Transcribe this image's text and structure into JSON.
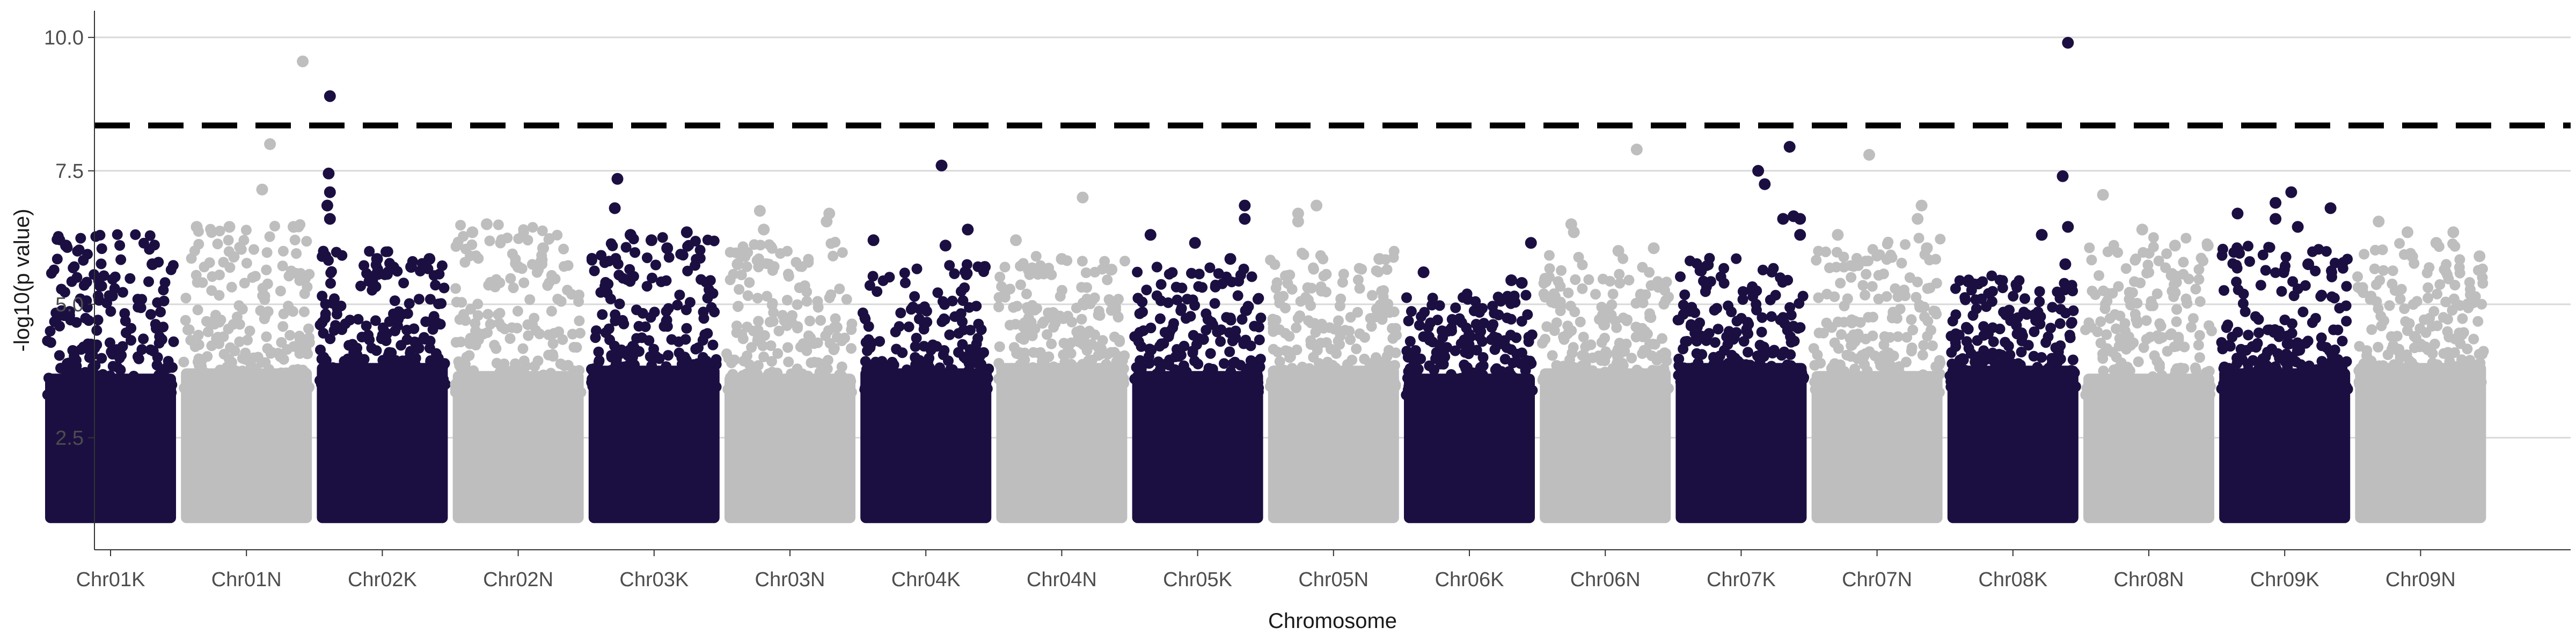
{
  "chart_data": {
    "type": "scatter",
    "subtype": "manhattan",
    "title": "",
    "xlabel": "Chromosome",
    "ylabel": "-log10(p value)",
    "ylim": [
      0.4,
      10.5
    ],
    "yticks": [
      "2.5",
      "5.0",
      "7.5",
      "10.0"
    ],
    "ytick_values": [
      2.5,
      5.0,
      7.5,
      10.0
    ],
    "grid": "horizontal major lines",
    "threshold": 8.35,
    "threshold_style": "dashed black line",
    "colors": {
      "odd_chromosome": "#1b0f42",
      "even_chromosome": "#bebebe",
      "threshold": "#000000",
      "grid": "#d9d9d9"
    },
    "categories": [
      "Chr01K",
      "Chr01N",
      "Chr02K",
      "Chr02N",
      "Chr03K",
      "Chr03N",
      "Chr04K",
      "Chr04N",
      "Chr05K",
      "Chr05N",
      "Chr06K",
      "Chr06N",
      "Chr07K",
      "Chr07N",
      "Chr08K",
      "Chr08N",
      "Chr09K",
      "Chr09N"
    ],
    "chromosomes": [
      {
        "name": "Chr01K",
        "color": "#1b0f42",
        "max_y": 6.4,
        "highlights": [
          [
            0.82,
            5.75
          ],
          [
            0.16,
            6.1
          ],
          [
            0.42,
            5.35
          ]
        ]
      },
      {
        "name": "Chr01N",
        "color": "#bebebe",
        "max_y": 6.5,
        "highlights": [
          [
            0.93,
            9.55
          ],
          [
            0.68,
            8.0
          ],
          [
            0.62,
            7.15
          ],
          [
            0.86,
            6.45
          ],
          [
            0.12,
            6.45
          ],
          [
            0.37,
            6.45
          ]
        ]
      },
      {
        "name": "Chr02K",
        "color": "#1b0f42",
        "max_y": 6.0,
        "highlights": [
          [
            0.1,
            8.9
          ],
          [
            0.09,
            7.45
          ],
          [
            0.1,
            7.1
          ],
          [
            0.08,
            6.85
          ],
          [
            0.1,
            6.6
          ],
          [
            0.86,
            5.85
          ],
          [
            0.46,
            5.85
          ],
          [
            0.72,
            5.7
          ]
        ]
      },
      {
        "name": "Chr02N",
        "color": "#bebebe",
        "max_y": 6.5,
        "highlights": [
          [
            0.26,
            6.5
          ],
          [
            0.15,
            6.35
          ],
          [
            0.69,
            6.05
          ],
          [
            0.5,
            5.7
          ]
        ]
      },
      {
        "name": "Chr03K",
        "color": "#1b0f42",
        "max_y": 6.3,
        "highlights": [
          [
            0.22,
            7.35
          ],
          [
            0.2,
            6.8
          ],
          [
            0.48,
            6.2
          ],
          [
            0.75,
            6.35
          ],
          [
            0.6,
            6.05
          ],
          [
            0.32,
            6.3
          ]
        ]
      },
      {
        "name": "Chr03N",
        "color": "#bebebe",
        "max_y": 6.2,
        "highlights": [
          [
            0.27,
            6.75
          ],
          [
            0.8,
            6.7
          ],
          [
            0.78,
            6.55
          ],
          [
            0.3,
            6.4
          ],
          [
            0.1,
            5.75
          ]
        ]
      },
      {
        "name": "Chr04K",
        "color": "#1b0f42",
        "max_y": 5.8,
        "highlights": [
          [
            0.62,
            7.6
          ],
          [
            0.82,
            6.4
          ],
          [
            0.1,
            6.2
          ],
          [
            0.65,
            6.1
          ],
          [
            0.95,
            5.7
          ]
        ]
      },
      {
        "name": "Chr04N",
        "color": "#bebebe",
        "max_y": 5.9,
        "highlights": [
          [
            0.66,
            7.0
          ],
          [
            0.15,
            6.2
          ],
          [
            0.5,
            5.85
          ],
          [
            0.88,
            5.65
          ]
        ]
      },
      {
        "name": "Chr05K",
        "color": "#1b0f42",
        "max_y": 5.7,
        "highlights": [
          [
            0.86,
            6.85
          ],
          [
            0.86,
            6.6
          ],
          [
            0.14,
            6.3
          ],
          [
            0.48,
            6.15
          ],
          [
            0.75,
            5.85
          ]
        ]
      },
      {
        "name": "Chr05N",
        "color": "#bebebe",
        "max_y": 6.0,
        "highlights": [
          [
            0.37,
            6.85
          ],
          [
            0.23,
            6.7
          ],
          [
            0.23,
            6.55
          ],
          [
            0.85,
            5.85
          ]
        ]
      },
      {
        "name": "Chr06K",
        "color": "#1b0f42",
        "max_y": 5.2,
        "highlights": [
          [
            0.97,
            6.15
          ],
          [
            0.82,
            5.45
          ],
          [
            0.9,
            5.4
          ],
          [
            0.15,
            5.6
          ]
        ]
      },
      {
        "name": "Chr06N",
        "color": "#bebebe",
        "max_y": 6.0,
        "highlights": [
          [
            0.74,
            7.9
          ],
          [
            0.24,
            6.5
          ],
          [
            0.26,
            6.35
          ],
          [
            0.87,
            6.05
          ],
          [
            0.6,
            6.0
          ]
        ]
      },
      {
        "name": "Chr07K",
        "color": "#1b0f42",
        "max_y": 5.9,
        "highlights": [
          [
            0.87,
            7.95
          ],
          [
            0.63,
            7.5
          ],
          [
            0.68,
            7.25
          ],
          [
            0.9,
            6.65
          ],
          [
            0.82,
            6.6
          ],
          [
            0.95,
            6.6
          ],
          [
            0.95,
            6.3
          ]
        ]
      },
      {
        "name": "Chr07N",
        "color": "#bebebe",
        "max_y": 6.3,
        "highlights": [
          [
            0.44,
            7.8
          ],
          [
            0.84,
            6.85
          ],
          [
            0.81,
            6.6
          ],
          [
            0.2,
            6.3
          ],
          [
            0.88,
            6.05
          ]
        ]
      },
      {
        "name": "Chr08K",
        "color": "#1b0f42",
        "max_y": 5.6,
        "highlights": [
          [
            0.92,
            9.9
          ],
          [
            0.88,
            7.4
          ],
          [
            0.92,
            6.45
          ],
          [
            0.72,
            6.3
          ],
          [
            0.9,
            5.75
          ]
        ]
      },
      {
        "name": "Chr08N",
        "color": "#bebebe",
        "max_y": 6.3,
        "highlights": [
          [
            0.15,
            7.05
          ],
          [
            0.45,
            6.4
          ],
          [
            0.7,
            6.1
          ],
          [
            0.95,
            6.1
          ]
        ]
      },
      {
        "name": "Chr09K",
        "color": "#1b0f42",
        "max_y": 6.1,
        "highlights": [
          [
            0.55,
            7.1
          ],
          [
            0.43,
            6.9
          ],
          [
            0.43,
            6.6
          ],
          [
            0.85,
            6.8
          ],
          [
            0.14,
            6.7
          ],
          [
            0.6,
            6.45
          ],
          [
            0.68,
            5.75
          ]
        ]
      },
      {
        "name": "Chr09N",
        "color": "#bebebe",
        "max_y": 6.2,
        "highlights": [
          [
            0.18,
            6.55
          ],
          [
            0.4,
            6.35
          ],
          [
            0.75,
            6.35
          ],
          [
            0.62,
            6.15
          ],
          [
            0.95,
            5.9
          ]
        ]
      }
    ]
  }
}
